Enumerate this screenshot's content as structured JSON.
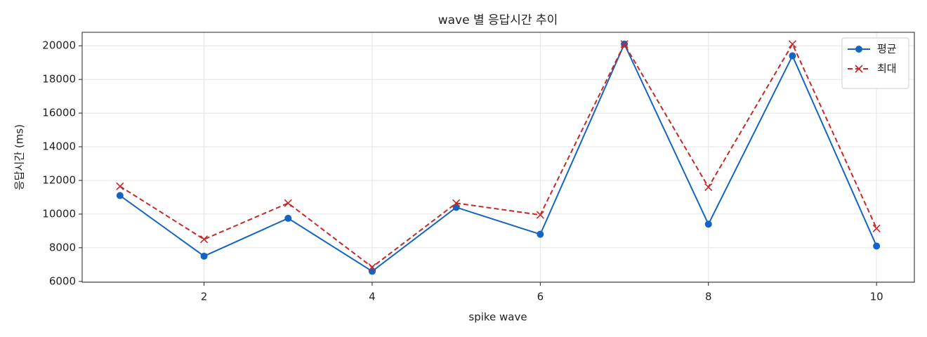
{
  "chart_data": {
    "type": "line",
    "title": "wave 별 응답시간 추이",
    "x_label": "spike wave",
    "y_label": "응답시간 (ms)",
    "x": [
      1,
      2,
      3,
      4,
      5,
      6,
      7,
      8,
      9,
      10
    ],
    "series": [
      {
        "name": "평균",
        "color": "#1565c0",
        "marker": "o",
        "linestyle": "solid",
        "values": [
          11100,
          7500,
          9750,
          6600,
          10400,
          8800,
          20100,
          9400,
          19400,
          8100
        ]
      },
      {
        "name": "최대",
        "color": "#c62828",
        "marker": "x",
        "linestyle": "dashed",
        "values": [
          11650,
          8500,
          10650,
          6850,
          10650,
          9950,
          20100,
          11600,
          20100,
          9150
        ]
      }
    ],
    "xlim": [
      0.55,
      10.45
    ],
    "ylim": [
      5950,
      20800
    ],
    "xticks": [
      2,
      4,
      6,
      8,
      10
    ],
    "yticks": [
      6000,
      8000,
      10000,
      12000,
      14000,
      16000,
      18000,
      20000
    ],
    "grid": true,
    "legend": "upper right"
  }
}
